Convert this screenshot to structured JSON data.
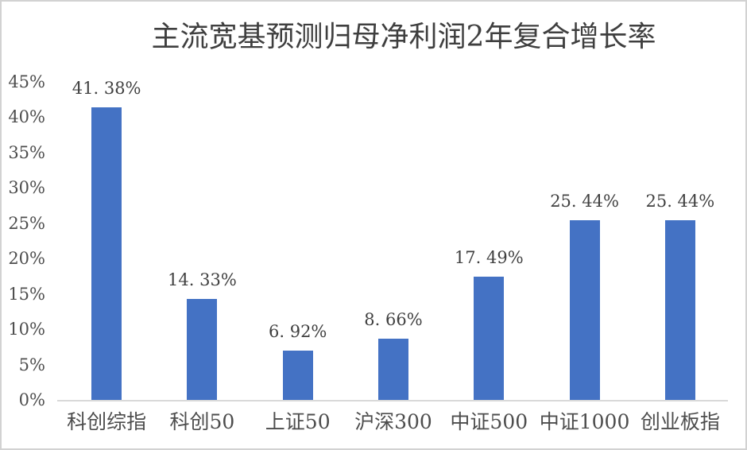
{
  "chart_data": {
    "type": "bar",
    "title": "主流宽基预测归母净利润2年复合增长率",
    "categories": [
      "科创综指",
      "科创50",
      "上证50",
      "沪深300",
      "中证500",
      "中证1000",
      "创业板指"
    ],
    "values": [
      41.38,
      14.33,
      6.92,
      8.66,
      17.49,
      25.44,
      25.44
    ],
    "data_labels": [
      "41. 38%",
      "14. 33%",
      "6. 92%",
      "8. 66%",
      "17. 49%",
      "25. 44%",
      "25. 44%"
    ],
    "y_ticks": [
      "0%",
      "5%",
      "10%",
      "15%",
      "20%",
      "25%",
      "30%",
      "35%",
      "40%",
      "45%"
    ],
    "ylim": [
      0,
      45
    ],
    "xlabel": "",
    "ylabel": "",
    "grid": false,
    "legend": false,
    "bar_color": "#4472C4",
    "axis_line_color": "#d9d9d9",
    "title_color": "#3f3f3f",
    "text_color": "#4d4d4d"
  }
}
